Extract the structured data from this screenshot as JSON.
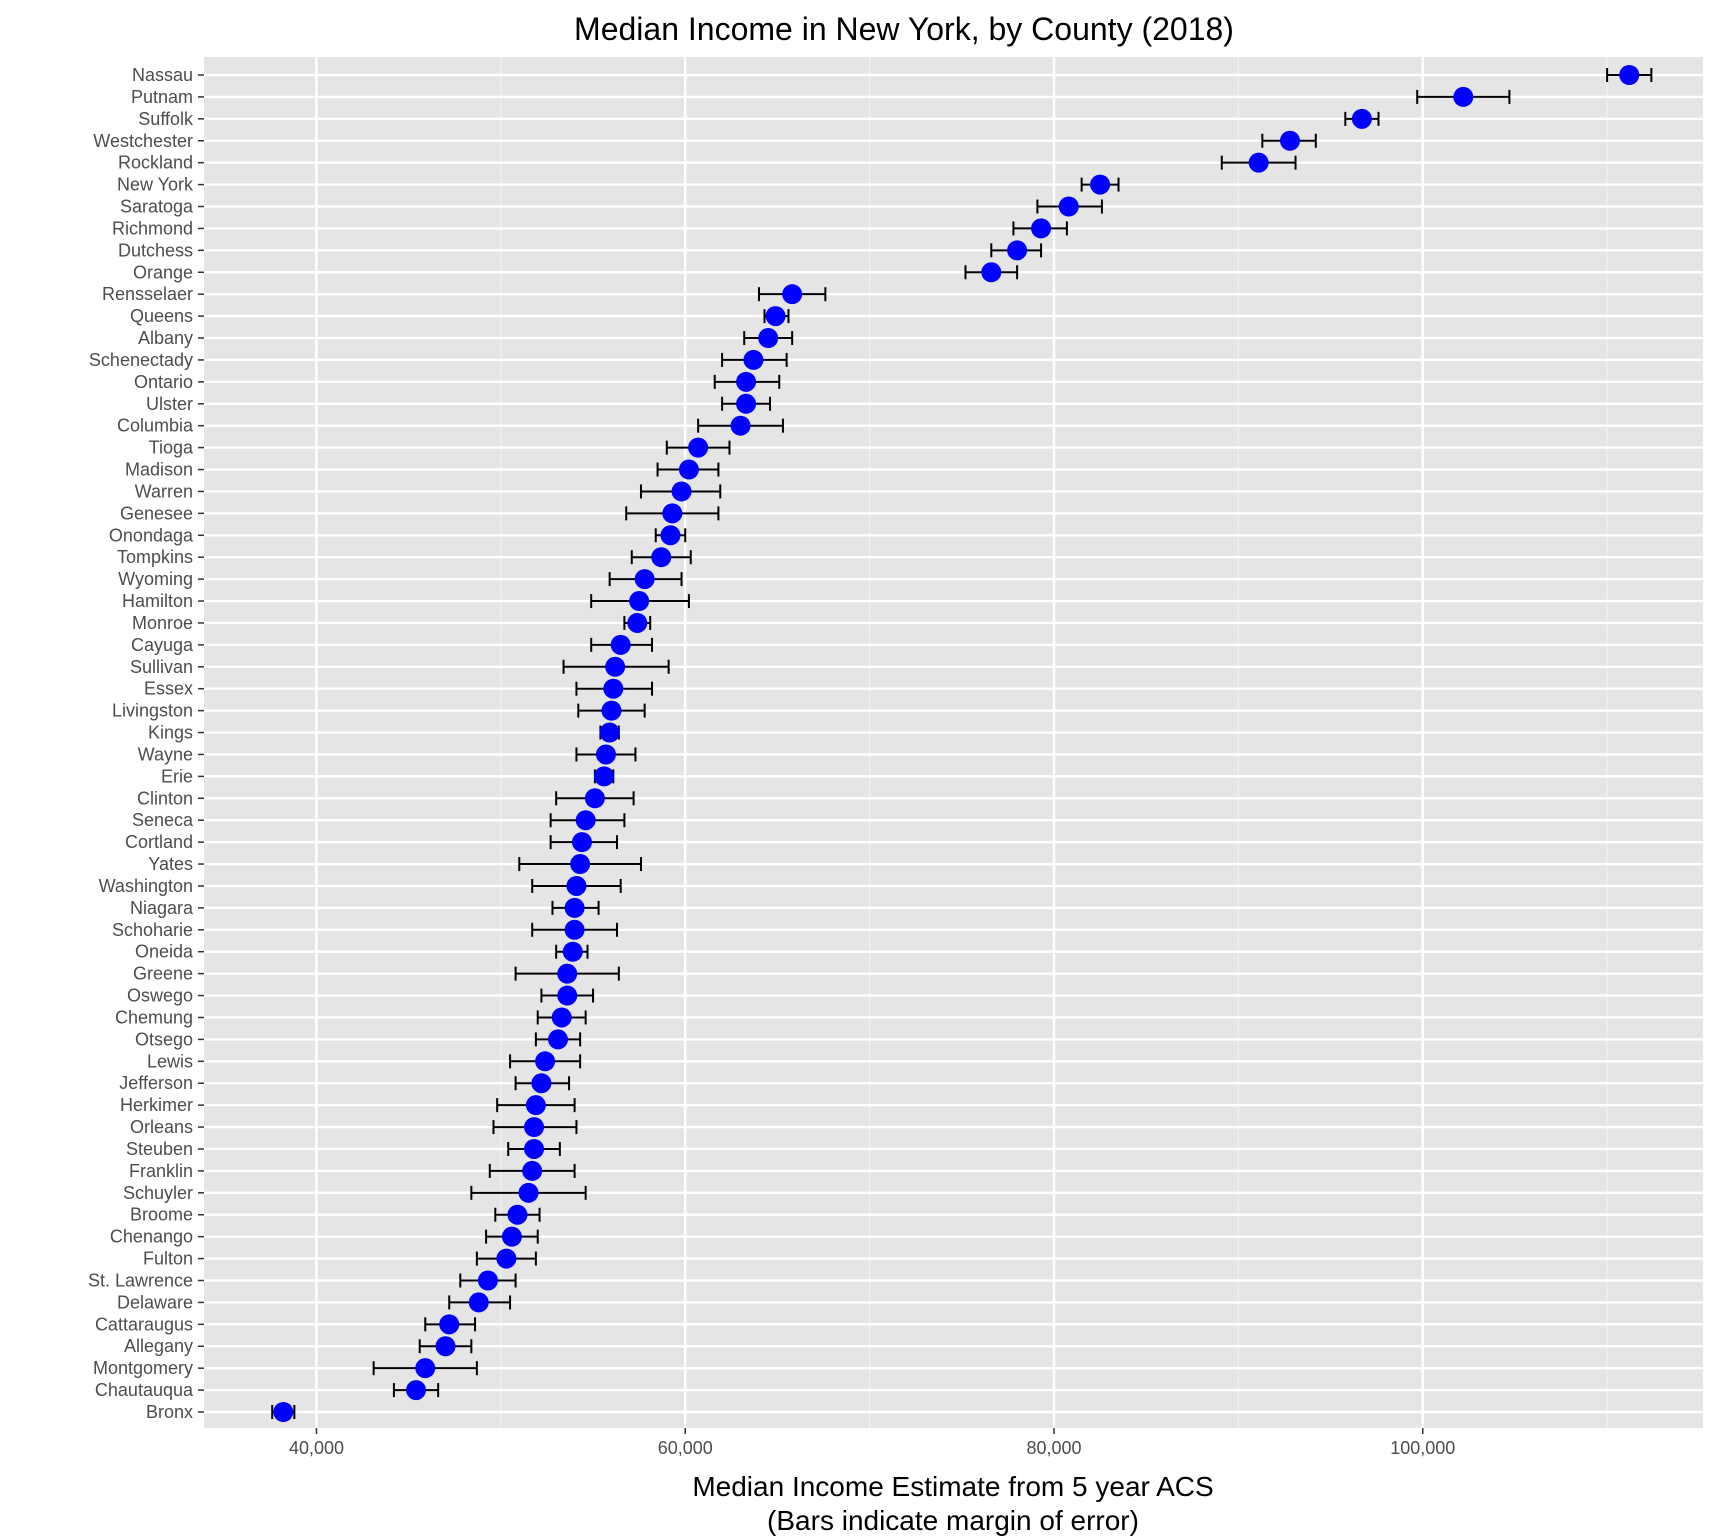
{
  "chart_data": {
    "type": "scatter",
    "title": "Median Income in New York, by County (2018)",
    "xlabel_line1": "Median Income Estimate from 5 year ACS",
    "xlabel_line2": "(Bars indicate margin of error)",
    "ylabel": "",
    "xlim": [
      33900,
      115200
    ],
    "x_ticks": [
      40000,
      60000,
      80000,
      100000
    ],
    "x_tick_labels": [
      "40,000",
      "60,000",
      "80,000",
      "100,000"
    ],
    "grid": true,
    "point_color": "#0000ff",
    "errorbar_color": "#000000",
    "panel_bg": "#e5e5e5",
    "counties": [
      {
        "name": "Nassau",
        "estimate": 111200,
        "low": 110000,
        "high": 112400
      },
      {
        "name": "Putnam",
        "estimate": 102200,
        "low": 99700,
        "high": 104700
      },
      {
        "name": "Suffolk",
        "estimate": 96700,
        "low": 95800,
        "high": 97600
      },
      {
        "name": "Westchester",
        "estimate": 92800,
        "low": 91300,
        "high": 94200
      },
      {
        "name": "Rockland",
        "estimate": 91100,
        "low": 89100,
        "high": 93100
      },
      {
        "name": "New York",
        "estimate": 82500,
        "low": 81500,
        "high": 83500
      },
      {
        "name": "Saratoga",
        "estimate": 80800,
        "low": 79100,
        "high": 82600
      },
      {
        "name": "Richmond",
        "estimate": 79300,
        "low": 77800,
        "high": 80700
      },
      {
        "name": "Dutchess",
        "estimate": 78000,
        "low": 76600,
        "high": 79300
      },
      {
        "name": "Orange",
        "estimate": 76600,
        "low": 75200,
        "high": 78000
      },
      {
        "name": "Rensselaer",
        "estimate": 65800,
        "low": 64000,
        "high": 67600
      },
      {
        "name": "Queens",
        "estimate": 64900,
        "low": 64300,
        "high": 65600
      },
      {
        "name": "Albany",
        "estimate": 64500,
        "low": 63200,
        "high": 65800
      },
      {
        "name": "Schenectady",
        "estimate": 63700,
        "low": 62000,
        "high": 65500
      },
      {
        "name": "Ontario",
        "estimate": 63300,
        "low": 61600,
        "high": 65100
      },
      {
        "name": "Ulster",
        "estimate": 63300,
        "low": 62000,
        "high": 64600
      },
      {
        "name": "Columbia",
        "estimate": 63000,
        "low": 60700,
        "high": 65300
      },
      {
        "name": "Tioga",
        "estimate": 60700,
        "low": 59000,
        "high": 62400
      },
      {
        "name": "Madison",
        "estimate": 60200,
        "low": 58500,
        "high": 61800
      },
      {
        "name": "Warren",
        "estimate": 59800,
        "low": 57600,
        "high": 61900
      },
      {
        "name": "Genesee",
        "estimate": 59300,
        "low": 56800,
        "high": 61800
      },
      {
        "name": "Onondaga",
        "estimate": 59200,
        "low": 58400,
        "high": 60000
      },
      {
        "name": "Tompkins",
        "estimate": 58700,
        "low": 57100,
        "high": 60300
      },
      {
        "name": "Wyoming",
        "estimate": 57800,
        "low": 55900,
        "high": 59800
      },
      {
        "name": "Hamilton",
        "estimate": 57500,
        "low": 54900,
        "high": 60200
      },
      {
        "name": "Monroe",
        "estimate": 57400,
        "low": 56700,
        "high": 58100
      },
      {
        "name": "Cayuga",
        "estimate": 56500,
        "low": 54900,
        "high": 58200
      },
      {
        "name": "Sullivan",
        "estimate": 56200,
        "low": 53400,
        "high": 59100
      },
      {
        "name": "Essex",
        "estimate": 56100,
        "low": 54100,
        "high": 58200
      },
      {
        "name": "Livingston",
        "estimate": 56000,
        "low": 54200,
        "high": 57800
      },
      {
        "name": "Kings",
        "estimate": 55900,
        "low": 55400,
        "high": 56400
      },
      {
        "name": "Wayne",
        "estimate": 55700,
        "low": 54100,
        "high": 57300
      },
      {
        "name": "Erie",
        "estimate": 55600,
        "low": 55100,
        "high": 56100
      },
      {
        "name": "Clinton",
        "estimate": 55100,
        "low": 53000,
        "high": 57200
      },
      {
        "name": "Seneca",
        "estimate": 54600,
        "low": 52700,
        "high": 56700
      },
      {
        "name": "Cortland",
        "estimate": 54400,
        "low": 52700,
        "high": 56300
      },
      {
        "name": "Yates",
        "estimate": 54300,
        "low": 51000,
        "high": 57600
      },
      {
        "name": "Washington",
        "estimate": 54100,
        "low": 51700,
        "high": 56500
      },
      {
        "name": "Niagara",
        "estimate": 54000,
        "low": 52800,
        "high": 55300
      },
      {
        "name": "Schoharie",
        "estimate": 54000,
        "low": 51700,
        "high": 56300
      },
      {
        "name": "Oneida",
        "estimate": 53900,
        "low": 53000,
        "high": 54700
      },
      {
        "name": "Greene",
        "estimate": 53600,
        "low": 50800,
        "high": 56400
      },
      {
        "name": "Oswego",
        "estimate": 53600,
        "low": 52200,
        "high": 55000
      },
      {
        "name": "Chemung",
        "estimate": 53300,
        "low": 52000,
        "high": 54600
      },
      {
        "name": "Otsego",
        "estimate": 53100,
        "low": 51900,
        "high": 54300
      },
      {
        "name": "Lewis",
        "estimate": 52400,
        "low": 50500,
        "high": 54300
      },
      {
        "name": "Jefferson",
        "estimate": 52200,
        "low": 50800,
        "high": 53700
      },
      {
        "name": "Herkimer",
        "estimate": 51900,
        "low": 49800,
        "high": 54000
      },
      {
        "name": "Orleans",
        "estimate": 51800,
        "low": 49600,
        "high": 54100
      },
      {
        "name": "Steuben",
        "estimate": 51800,
        "low": 50400,
        "high": 53200
      },
      {
        "name": "Franklin",
        "estimate": 51700,
        "low": 49400,
        "high": 54000
      },
      {
        "name": "Schuyler",
        "estimate": 51500,
        "low": 48400,
        "high": 54600
      },
      {
        "name": "Broome",
        "estimate": 50900,
        "low": 49700,
        "high": 52100
      },
      {
        "name": "Chenango",
        "estimate": 50600,
        "low": 49200,
        "high": 52000
      },
      {
        "name": "Fulton",
        "estimate": 50300,
        "low": 48700,
        "high": 51900
      },
      {
        "name": "St. Lawrence",
        "estimate": 49300,
        "low": 47800,
        "high": 50800
      },
      {
        "name": "Delaware",
        "estimate": 48800,
        "low": 47200,
        "high": 50500
      },
      {
        "name": "Cattaraugus",
        "estimate": 47200,
        "low": 45900,
        "high": 48600
      },
      {
        "name": "Allegany",
        "estimate": 47000,
        "low": 45600,
        "high": 48400
      },
      {
        "name": "Montgomery",
        "estimate": 45900,
        "low": 43100,
        "high": 48700
      },
      {
        "name": "Chautauqua",
        "estimate": 45400,
        "low": 44200,
        "high": 46600
      },
      {
        "name": "Bronx",
        "estimate": 38200,
        "low": 37600,
        "high": 38800
      }
    ]
  }
}
